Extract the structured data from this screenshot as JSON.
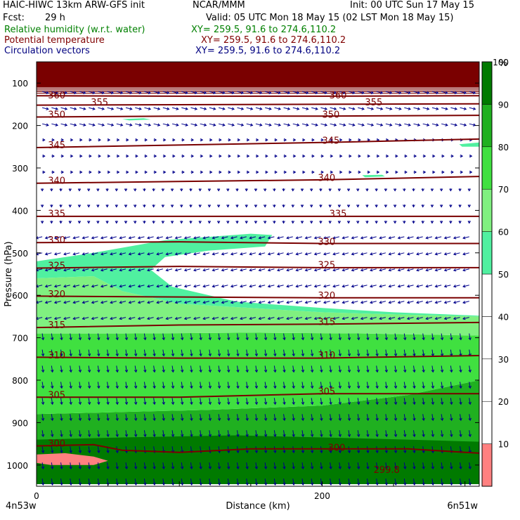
{
  "header": {
    "model": "HAIC-HIWC 13km ARW-GFS init",
    "org": "NCAR/MMM",
    "init": "Init: 00 UTC Sun 17 May 15",
    "fcst_label": "Fcst:",
    "fcst_value": "29 h",
    "valid": "Valid: 05 UTC Mon 18 May 15 (02 LST Mon 18 May 15)"
  },
  "fields": [
    {
      "name": "Relative humidity (w.r.t. water)",
      "xy": "XY= 259.5, 91.6 to 274.6,110.2",
      "color": "#008000"
    },
    {
      "name": "Potential temperature",
      "xy": "XY= 259.5, 91.6 to 274.6,110.2",
      "color": "#800000"
    },
    {
      "name": "Circulation vectors",
      "xy": "XY= 259.5, 91.6 to 274.6,110.2",
      "color": "#000080"
    }
  ],
  "colors": {
    "theta_line": "#7a0000",
    "vector": "#00008b",
    "top_band": "#7a0000",
    "rh_bins": [
      "#ff8080",
      "#ffffff",
      "#ffffff",
      "#ffffff",
      "#ffffff",
      "#50f0a0",
      "#80f080",
      "#40e040",
      "#20b020",
      "#007a00"
    ]
  },
  "chart_data": {
    "type": "contour",
    "xlabel": "Distance (km)",
    "ylabel": "Pressure (hPa)",
    "xlim": [
      0,
      310
    ],
    "ylim": [
      1050,
      50
    ],
    "x_ticks": [
      0,
      200
    ],
    "y_ticks": [
      100,
      200,
      300,
      400,
      500,
      600,
      700,
      800,
      900,
      1000
    ],
    "x_left_label": "4n53w",
    "x_right_label": "6n51w",
    "colorbar": {
      "unit": "%",
      "ticks": [
        10,
        20,
        30,
        40,
        50,
        60,
        70,
        80,
        90,
        100
      ],
      "bins": [
        [
          0,
          10
        ],
        [
          10,
          20
        ],
        [
          20,
          30
        ],
        [
          30,
          40
        ],
        [
          40,
          50
        ],
        [
          50,
          60
        ],
        [
          60,
          70
        ],
        [
          70,
          80
        ],
        [
          80,
          90
        ],
        [
          90,
          100
        ]
      ]
    },
    "theta_isolines": [
      {
        "value": 360,
        "points": [
          [
            0,
            130
          ],
          [
            100,
            131
          ],
          [
            200,
            131
          ],
          [
            310,
            130
          ]
        ],
        "labels": [
          [
            8,
            128,
            "360"
          ],
          [
            205,
            128,
            "360"
          ]
        ]
      },
      {
        "value": 355,
        "points": [
          [
            0,
            152
          ],
          [
            100,
            151
          ],
          [
            200,
            150
          ],
          [
            310,
            149
          ]
        ],
        "labels": [
          [
            38,
            144,
            "355"
          ],
          [
            230,
            144,
            "355"
          ]
        ]
      },
      {
        "value": 350,
        "points": [
          [
            0,
            180
          ],
          [
            100,
            178
          ],
          [
            200,
            178
          ],
          [
            310,
            176
          ]
        ],
        "labels": [
          [
            8,
            173,
            "350"
          ],
          [
            200,
            173,
            "350"
          ]
        ]
      },
      {
        "value": 345,
        "points": [
          [
            0,
            252
          ],
          [
            100,
            246
          ],
          [
            200,
            240
          ],
          [
            310,
            232
          ]
        ],
        "labels": [
          [
            8,
            245,
            "345"
          ],
          [
            200,
            235,
            "345"
          ]
        ]
      },
      {
        "value": 340,
        "points": [
          [
            0,
            336
          ],
          [
            100,
            332
          ],
          [
            200,
            328
          ],
          [
            310,
            320
          ]
        ],
        "labels": [
          [
            8,
            329,
            "340"
          ],
          [
            197,
            322,
            "340"
          ]
        ]
      },
      {
        "value": 335,
        "points": [
          [
            0,
            414
          ],
          [
            100,
            414
          ],
          [
            200,
            414
          ],
          [
            310,
            414
          ]
        ],
        "labels": [
          [
            8,
            407,
            "335"
          ],
          [
            205,
            407,
            "335"
          ]
        ]
      },
      {
        "value": 330,
        "points": [
          [
            0,
            476
          ],
          [
            100,
            474
          ],
          [
            200,
            478
          ],
          [
            310,
            478
          ]
        ],
        "labels": [
          [
            8,
            469,
            "330"
          ],
          [
            197,
            473,
            "330"
          ]
        ]
      },
      {
        "value": 325,
        "points": [
          [
            0,
            536
          ],
          [
            100,
            532
          ],
          [
            200,
            535
          ],
          [
            310,
            535
          ]
        ],
        "labels": [
          [
            8,
            529,
            "325"
          ],
          [
            197,
            528,
            "325"
          ]
        ]
      },
      {
        "value": 320,
        "points": [
          [
            0,
            602
          ],
          [
            100,
            604
          ],
          [
            200,
            606
          ],
          [
            310,
            606
          ]
        ],
        "labels": [
          [
            8,
            596,
            "320"
          ],
          [
            197,
            600,
            "320"
          ]
        ]
      },
      {
        "value": 315,
        "points": [
          [
            0,
            676
          ],
          [
            100,
            670
          ],
          [
            200,
            668
          ],
          [
            310,
            664
          ]
        ],
        "labels": [
          [
            8,
            669,
            "315"
          ],
          [
            197,
            662,
            "315"
          ]
        ]
      },
      {
        "value": 310,
        "points": [
          [
            0,
            746
          ],
          [
            100,
            748
          ],
          [
            200,
            748
          ],
          [
            310,
            742
          ]
        ],
        "labels": [
          [
            8,
            740,
            "310"
          ],
          [
            197,
            740,
            "310"
          ]
        ]
      },
      {
        "value": 305,
        "points": [
          [
            0,
            840
          ],
          [
            100,
            840
          ],
          [
            200,
            832
          ],
          [
            310,
            832
          ]
        ],
        "labels": [
          [
            8,
            834,
            "305"
          ],
          [
            197,
            826,
            "305"
          ]
        ]
      },
      {
        "value": 300,
        "points": [
          [
            0,
            955
          ],
          [
            40,
            952
          ],
          [
            60,
            965
          ],
          [
            100,
            970
          ],
          [
            150,
            962
          ],
          [
            200,
            962
          ],
          [
            260,
            962
          ],
          [
            310,
            972
          ]
        ],
        "labels": [
          [
            8,
            948,
            "300"
          ],
          [
            204,
            958,
            "300"
          ]
        ]
      }
    ],
    "theta_extra_labels": [
      [
        236,
        1010,
        "299.8"
      ]
    ],
    "rh_regions": [
      {
        "bin": 8,
        "points": [
          [
            0,
            880
          ],
          [
            60,
            875
          ],
          [
            120,
            870
          ],
          [
            200,
            860
          ],
          [
            260,
            835
          ],
          [
            310,
            800
          ],
          [
            310,
            1045
          ],
          [
            0,
            1045
          ]
        ]
      },
      {
        "bin": 9,
        "points": [
          [
            0,
            940
          ],
          [
            60,
            935
          ],
          [
            140,
            930
          ],
          [
            200,
            935
          ],
          [
            260,
            940
          ],
          [
            310,
            945
          ],
          [
            310,
            1045
          ],
          [
            0,
            1045
          ]
        ]
      },
      {
        "bin": 7,
        "points": [
          [
            0,
            690
          ],
          [
            60,
            690
          ],
          [
            150,
            688
          ],
          [
            230,
            690
          ],
          [
            310,
            695
          ],
          [
            310,
            800
          ],
          [
            260,
            835
          ],
          [
            200,
            860
          ],
          [
            120,
            870
          ],
          [
            60,
            875
          ],
          [
            0,
            880
          ]
        ]
      },
      {
        "bin": 6,
        "points": [
          [
            0,
            560
          ],
          [
            40,
            555
          ],
          [
            60,
            590
          ],
          [
            100,
            620
          ],
          [
            150,
            630
          ],
          [
            200,
            640
          ],
          [
            250,
            645
          ],
          [
            310,
            650
          ],
          [
            310,
            695
          ],
          [
            230,
            690
          ],
          [
            150,
            688
          ],
          [
            60,
            690
          ],
          [
            0,
            690
          ]
        ]
      },
      {
        "bin": 5,
        "points": [
          [
            0,
            520
          ],
          [
            40,
            500
          ],
          [
            90,
            470
          ],
          [
            150,
            455
          ],
          [
            165,
            458
          ],
          [
            160,
            485
          ],
          [
            120,
            495
          ],
          [
            90,
            510
          ],
          [
            80,
            540
          ],
          [
            95,
            580
          ],
          [
            140,
            615
          ],
          [
            200,
            630
          ],
          [
            250,
            640
          ],
          [
            310,
            648
          ],
          [
            310,
            650
          ],
          [
            250,
            645
          ],
          [
            200,
            640
          ],
          [
            150,
            630
          ],
          [
            100,
            620
          ],
          [
            60,
            590
          ],
          [
            40,
            555
          ],
          [
            0,
            560
          ]
        ]
      },
      {
        "bin": 0,
        "points": [
          [
            0,
            975
          ],
          [
            20,
            972
          ],
          [
            40,
            980
          ],
          [
            50,
            990
          ],
          [
            40,
            1000
          ],
          [
            10,
            1000
          ],
          [
            0,
            995
          ]
        ]
      },
      {
        "bin": 5,
        "points": [
          [
            60,
            185
          ],
          [
            75,
            183
          ],
          [
            80,
            186
          ],
          [
            65,
            188
          ]
        ]
      },
      {
        "bin": 5,
        "points": [
          [
            228,
            317
          ],
          [
            242,
            316
          ],
          [
            244,
            320
          ],
          [
            230,
            322
          ]
        ]
      },
      {
        "bin": 5,
        "points": [
          [
            296,
            244
          ],
          [
            310,
            240
          ],
          [
            310,
            250
          ],
          [
            298,
            250
          ]
        ]
      }
    ],
    "vector_field": {
      "upper": "eastward aloft (above 200 hPa), westward below 400 hPa, near-zero midlevels",
      "lower": "southward/downward arrows near surface"
    }
  }
}
